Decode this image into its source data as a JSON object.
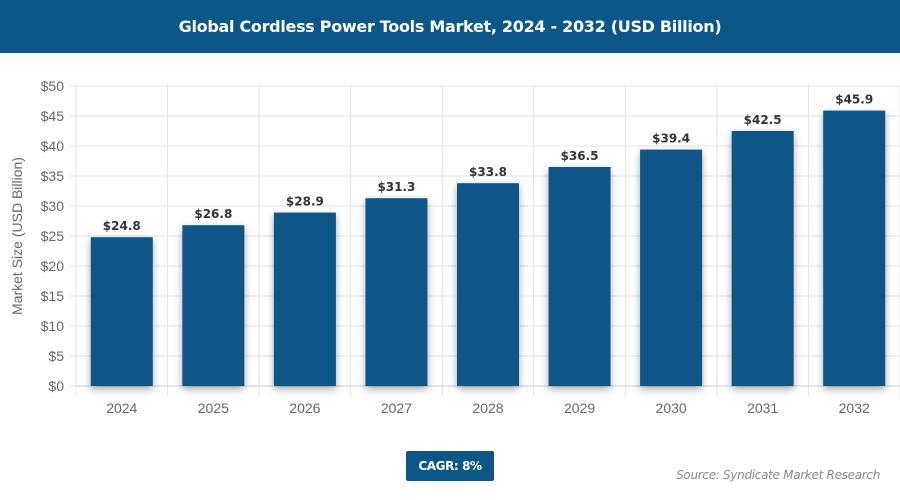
{
  "chart_data": {
    "type": "bar",
    "title": "Global Cordless Power Tools Market, 2024 - 2032 (USD Billion)",
    "categories": [
      "2024",
      "2025",
      "2026",
      "2027",
      "2028",
      "2029",
      "2030",
      "2031",
      "2032"
    ],
    "values": [
      24.8,
      26.8,
      28.9,
      31.3,
      33.8,
      36.5,
      39.4,
      42.5,
      45.9
    ],
    "data_labels": [
      "$24.8",
      "$26.8",
      "$28.9",
      "$31.3",
      "$33.8",
      "$36.5",
      "$39.4",
      "$42.5",
      "$45.9"
    ],
    "xlabel": "",
    "ylabel": "Market Size (USD Billion)",
    "ylim": [
      0,
      50
    ],
    "yticks": [
      "$0",
      "$5",
      "$10",
      "$15",
      "$20",
      "$25",
      "$30",
      "$35",
      "$40",
      "$45",
      "$50"
    ],
    "grid": true,
    "bar_color": "#0b5787"
  },
  "cagr": "CAGR: 8%",
  "source": "Source: Syndicate Market Research"
}
